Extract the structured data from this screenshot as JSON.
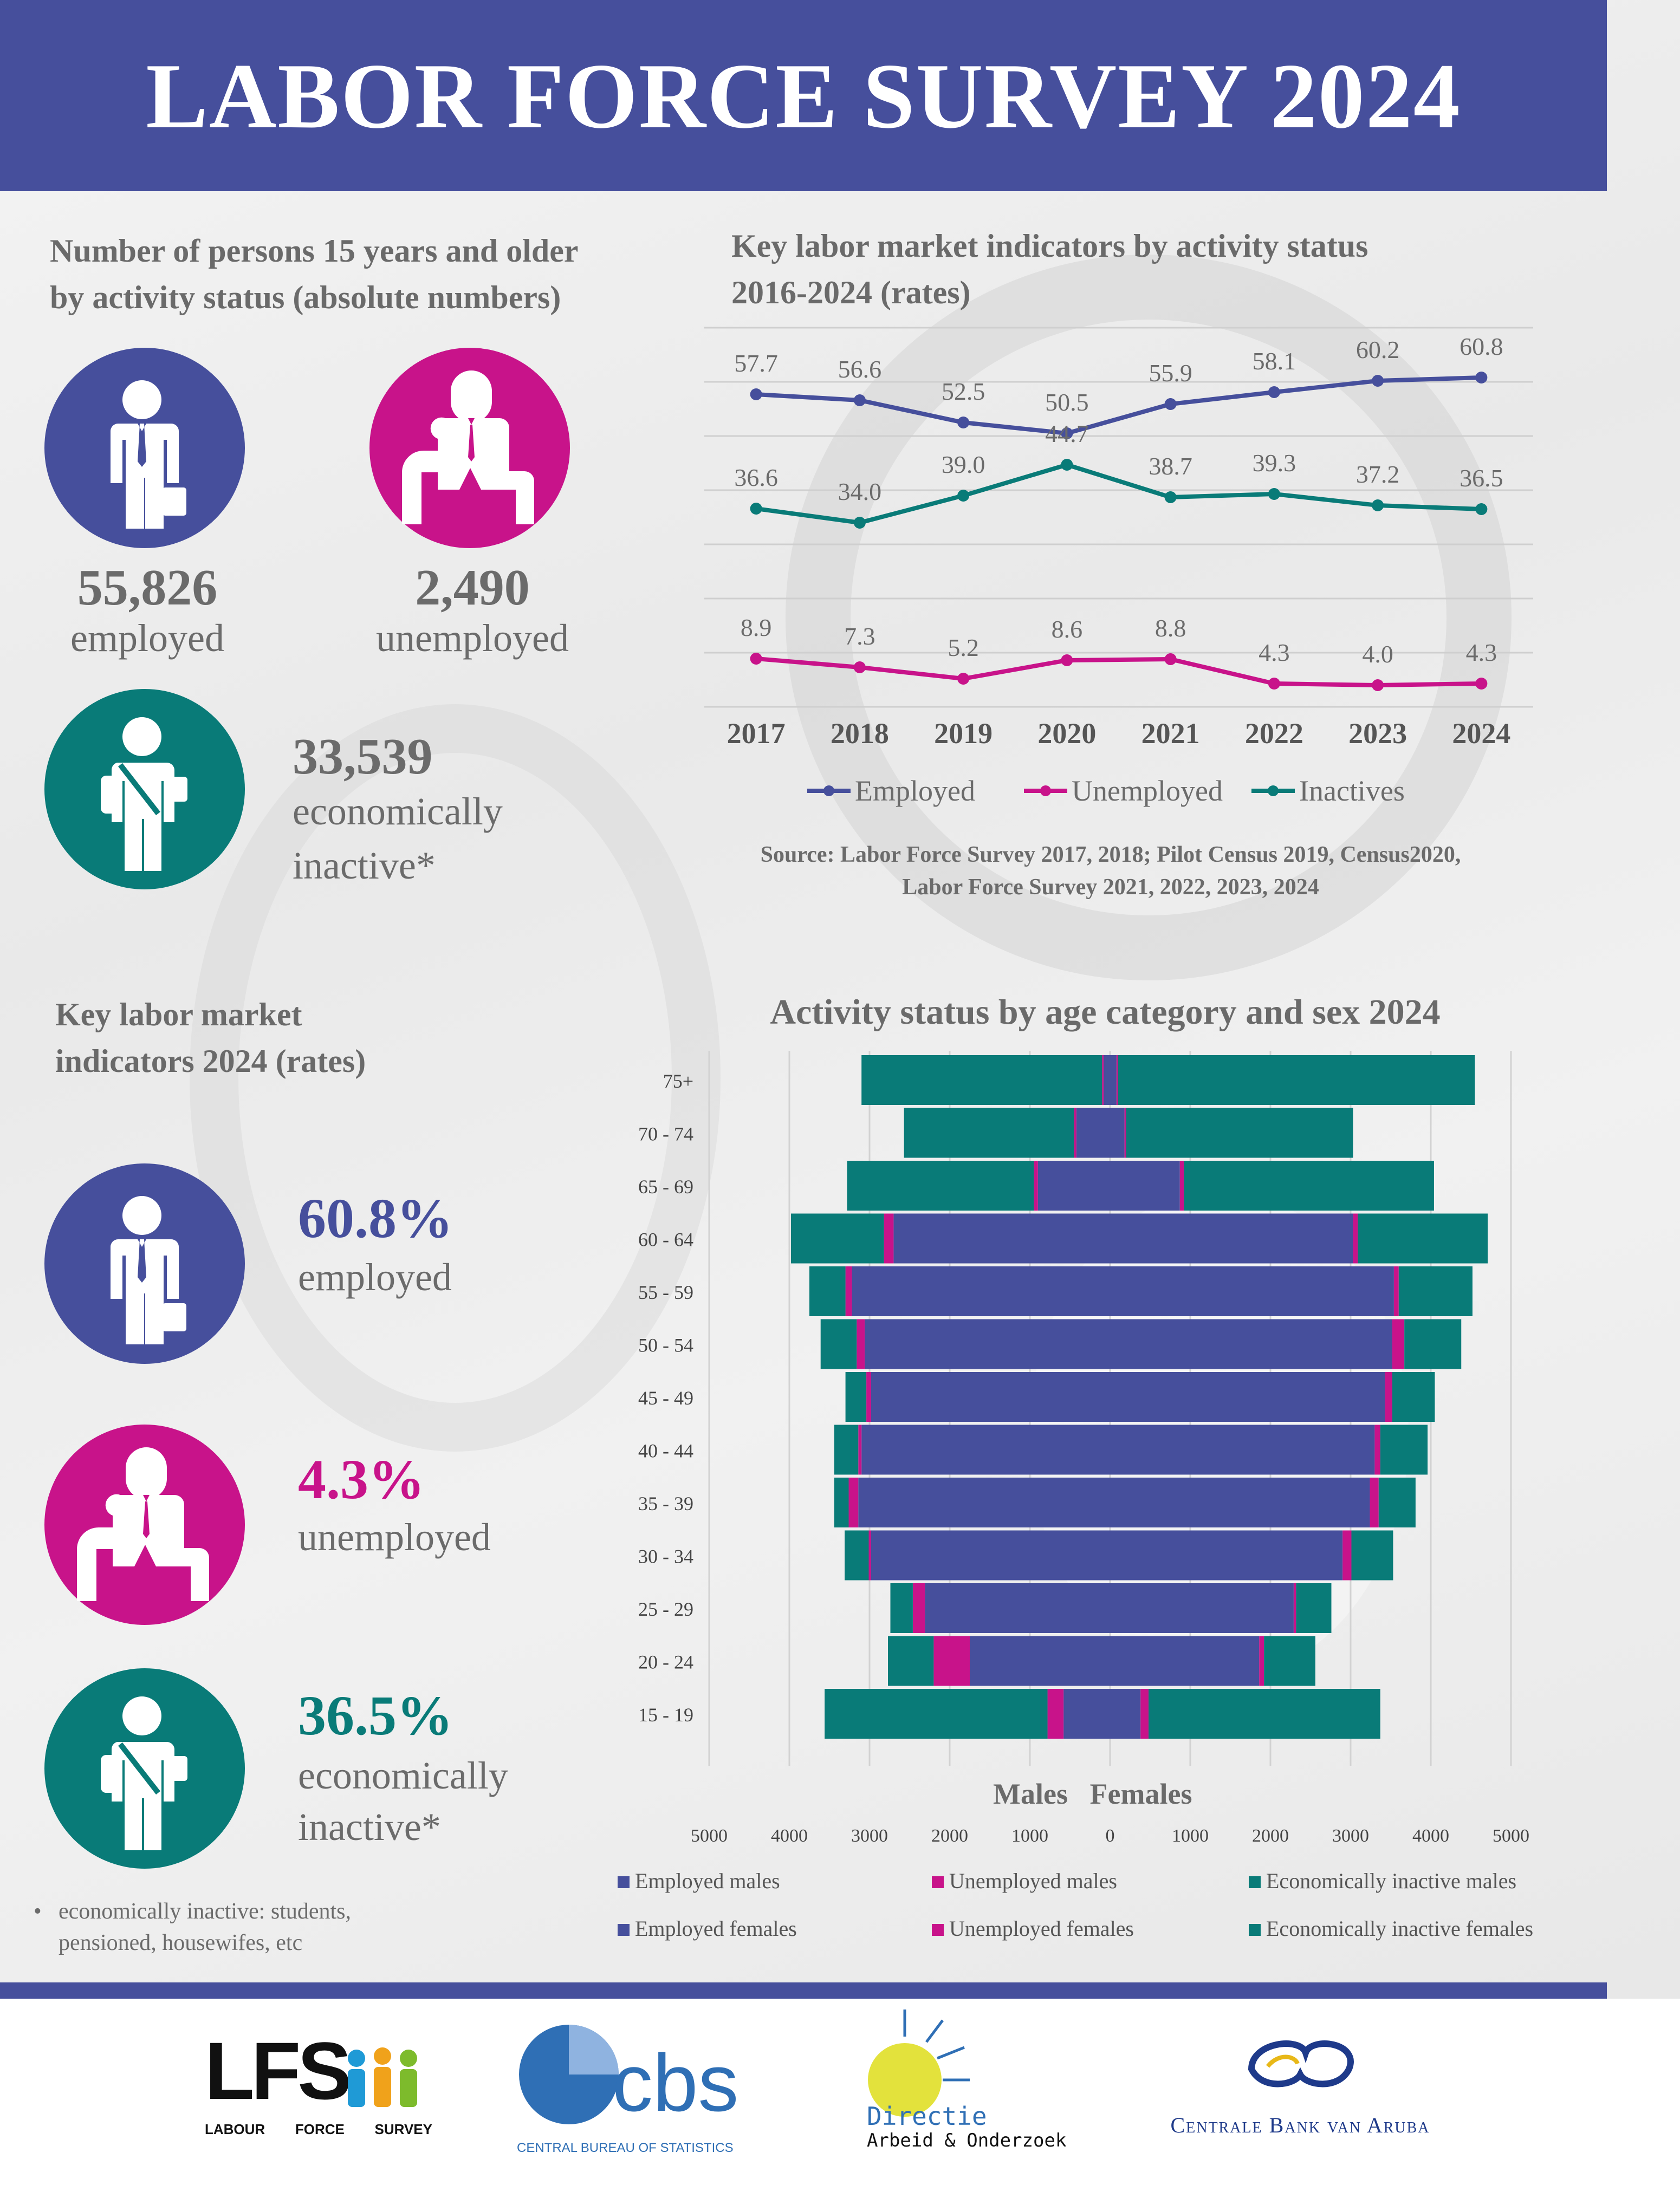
{
  "header": {
    "title": "LABOR FORCE SURVEY 2024"
  },
  "absolute": {
    "title_line1": "Number of persons 15 years and older",
    "title_line2": "by activity status (absolute numbers)",
    "employed_value": "55,826",
    "employed_label": "employed",
    "unemployed_value": "2,490",
    "unemployed_label": "unemployed",
    "inactive_value": "33,539",
    "inactive_label_1": "economically",
    "inactive_label_2": "inactive*"
  },
  "rates2024": {
    "title_line1": "Key labor market",
    "title_line2": "indicators 2024 (rates)",
    "employed_value": "60.8%",
    "employed_label": "employed",
    "unemployed_value": "4.3%",
    "unemployed_label": "unemployed",
    "inactive_value": "36.5%",
    "inactive_label_1": "economically",
    "inactive_label_2": "inactive*"
  },
  "footnote": {
    "bullet": "•",
    "line1": "economically inactive: students,",
    "line2": "pensioned,  housewifes, etc"
  },
  "colors": {
    "employed": "#464f9c",
    "unemployed": "#c8138a",
    "inactive": "#097b78",
    "header": "#464f9c"
  },
  "icons": {
    "employed": "businessman-with-briefcase-icon",
    "unemployed": "sitting-head-down-person-icon",
    "inactive": "student-with-backpack-icon"
  },
  "source": {
    "line1": "Source: Labor Force Survey 2017, 2018; Pilot Census 2019, Census2020,",
    "line2": "Labor Force Survey 2021, 2022, 2023, 2024"
  },
  "logos": {
    "lfs_letters": "LFS",
    "lfs_caption": [
      "LABOUR",
      "FORCE",
      "SURVEY"
    ],
    "cbs_letters": "cbs",
    "cbs_caption": "CENTRAL BUREAU OF STATISTICS",
    "dao_line1": "Directie",
    "dao_line2": "Arbeid & Onderzoek",
    "cba_caption": "Centrale Bank van Aruba"
  },
  "chart_data": [
    {
      "type": "line",
      "title": "Key labor market indicators by activity status 2016-2024 (rates)",
      "x": [
        "2017",
        "2018",
        "2019",
        "2020",
        "2021",
        "2022",
        "2023",
        "2024"
      ],
      "ylim": [
        0,
        70
      ],
      "grid": true,
      "legend_position": "bottom",
      "series": [
        {
          "name": "Employed",
          "color": "#464f9c",
          "values": [
            57.7,
            56.6,
            52.5,
            50.5,
            55.9,
            58.1,
            60.2,
            60.8
          ],
          "labels": [
            "57.7",
            "56.6",
            "52.5",
            "50.5",
            "55.9",
            "58.1",
            "60.2",
            "60.8"
          ]
        },
        {
          "name": "Unemployed",
          "color": "#c8138a",
          "values": [
            8.9,
            7.3,
            5.2,
            8.6,
            8.8,
            4.3,
            4.0,
            4.3
          ],
          "labels": [
            "8.9",
            "7.3",
            "5.2",
            "8.6",
            "8.8",
            "4.3",
            "4.0",
            "4.3"
          ]
        },
        {
          "name": "Inactives",
          "color": "#097b78",
          "values": [
            36.6,
            34.0,
            39.0,
            44.7,
            38.7,
            39.3,
            37.2,
            36.5
          ],
          "labels": [
            "36.6",
            "34.0",
            "39.0",
            "44.7",
            "38.7",
            "39.3",
            "37.2",
            "36.5"
          ]
        }
      ]
    },
    {
      "type": "bar",
      "subtype": "population-pyramid",
      "title": "Activity status by age category and sex 2024",
      "xlabel_left": "Males",
      "xlabel_right": "Females",
      "categories": [
        "75+",
        "70 - 74",
        "65 - 69",
        "60 - 64",
        "55 - 59",
        "50 - 54",
        "45 - 49",
        "40 - 44",
        "35 - 39",
        "30 - 34",
        "25 - 29",
        "20 - 24",
        "15 - 19"
      ],
      "xlim": [
        -5000,
        5000
      ],
      "ticks": [
        "5000",
        "4000",
        "3000",
        "2000",
        "1000",
        "0",
        "1000",
        "2000",
        "3000",
        "4000",
        "5000"
      ],
      "tick_values": [
        -5000,
        -4000,
        -3000,
        -2000,
        -1000,
        0,
        1000,
        2000,
        3000,
        4000,
        5000
      ],
      "grid": true,
      "legend_position": "bottom",
      "series": [
        {
          "name": "Employed males",
          "color": "#464f9c",
          "values": [
            80,
            420,
            900,
            2700,
            3220,
            3060,
            2980,
            3100,
            3140,
            2980,
            2310,
            1750,
            580
          ]
        },
        {
          "name": "Unemployed males",
          "color": "#c8138a",
          "values": [
            20,
            30,
            50,
            120,
            80,
            100,
            60,
            40,
            120,
            30,
            150,
            450,
            200
          ]
        },
        {
          "name": "Economically inactive males",
          "color": "#097b78",
          "values": [
            3000,
            2120,
            2330,
            1160,
            450,
            450,
            260,
            300,
            180,
            300,
            280,
            570,
            2780
          ]
        },
        {
          "name": "Employed females",
          "color": "#464f9c",
          "values": [
            80,
            180,
            870,
            3030,
            3540,
            3520,
            3430,
            3300,
            3240,
            2900,
            2290,
            1860,
            380
          ]
        },
        {
          "name": "Unemployed females",
          "color": "#c8138a",
          "values": [
            20,
            20,
            50,
            60,
            60,
            150,
            90,
            70,
            110,
            110,
            30,
            60,
            100
          ]
        },
        {
          "name": "Economically inactive females",
          "color": "#097b78",
          "values": [
            4450,
            2830,
            3120,
            1620,
            920,
            710,
            530,
            590,
            460,
            520,
            440,
            640,
            2890
          ]
        }
      ]
    }
  ]
}
